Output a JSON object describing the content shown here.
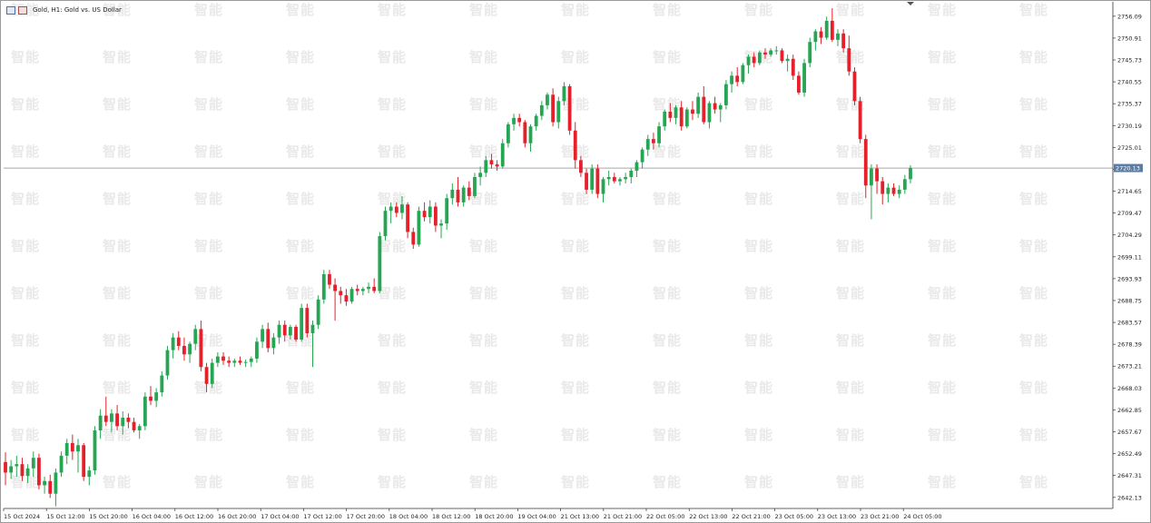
{
  "window": {
    "title": "Gold, H1:  Gold vs. US Dollar"
  },
  "colors": {
    "bull": "#26a653",
    "bear": "#e6202a",
    "price_line": "#a8a8a8",
    "axis": "#333333",
    "price_tag_bg": "#5b7da3"
  },
  "watermark": "智能",
  "chart_data": {
    "type": "candlestick",
    "symbol": "Gold",
    "timeframe": "H1",
    "title": "Gold vs. US Dollar",
    "ylim": [
      2639.5,
      2759.5
    ],
    "y_ticks": [
      "2756.09",
      "2750.91",
      "2745.73",
      "2740.55",
      "2735.37",
      "2730.19",
      "2725.01",
      "2719.83",
      "2714.65",
      "2709.47",
      "2704.29",
      "2699.11",
      "2693.93",
      "2688.75",
      "2683.57",
      "2678.39",
      "2673.21",
      "2668.03",
      "2662.85",
      "2657.67",
      "2652.49",
      "2647.31",
      "2642.13"
    ],
    "current_price": "2720.13",
    "x_labels": [
      "15 Oct 2024",
      "15 Oct 12:00",
      "15 Oct 20:00",
      "16 Oct 04:00",
      "16 Oct 12:00",
      "16 Oct 20:00",
      "17 Oct 04:00",
      "17 Oct 12:00",
      "17 Oct 20:00",
      "18 Oct 04:00",
      "18 Oct 12:00",
      "18 Oct 20:00",
      "19 Oct 04:00",
      "21 Oct 13:00",
      "21 Oct 21:00",
      "22 Oct 05:00",
      "22 Oct 13:00",
      "22 Oct 21:00",
      "23 Oct 05:00",
      "23 Oct 13:00",
      "23 Oct 21:00",
      "24 Oct 05:00"
    ],
    "candles_note": "approximate OHLC per H1 bar read from chart",
    "candles": [
      [
        2650.5,
        2652.8,
        2645.0,
        2648.0
      ],
      [
        2648.0,
        2651.0,
        2646.5,
        2649.5
      ],
      [
        2649.5,
        2652.0,
        2647.0,
        2650.0
      ],
      [
        2650.0,
        2651.5,
        2646.0,
        2647.2
      ],
      [
        2647.2,
        2650.0,
        2645.5,
        2649.0
      ],
      [
        2649.0,
        2653.0,
        2647.0,
        2651.5
      ],
      [
        2651.5,
        2652.5,
        2644.0,
        2645.0
      ],
      [
        2645.0,
        2647.0,
        2643.0,
        2646.0
      ],
      [
        2646.0,
        2647.5,
        2642.0,
        2643.0
      ],
      [
        2643.0,
        2649.0,
        2640.0,
        2648.0
      ],
      [
        2648.0,
        2653.0,
        2647.0,
        2652.0
      ],
      [
        2652.0,
        2656.0,
        2650.0,
        2655.0
      ],
      [
        2655.0,
        2657.0,
        2651.0,
        2653.0
      ],
      [
        2653.0,
        2656.0,
        2648.0,
        2654.5
      ],
      [
        2654.5,
        2655.0,
        2646.0,
        2647.0
      ],
      [
        2647.0,
        2649.5,
        2645.0,
        2648.5
      ],
      [
        2648.5,
        2659.0,
        2647.5,
        2658.0
      ],
      [
        2658.0,
        2663.0,
        2656.0,
        2661.5
      ],
      [
        2661.5,
        2666.0,
        2659.0,
        2660.0
      ],
      [
        2660.0,
        2663.0,
        2657.5,
        2662.0
      ],
      [
        2662.0,
        2664.0,
        2658.0,
        2659.0
      ],
      [
        2659.0,
        2662.5,
        2657.0,
        2661.0
      ],
      [
        2661.0,
        2662.0,
        2658.5,
        2660.0
      ],
      [
        2660.0,
        2661.0,
        2657.5,
        2658.0
      ],
      [
        2658.0,
        2659.5,
        2656.0,
        2659.0
      ],
      [
        2659.0,
        2667.0,
        2658.0,
        2666.0
      ],
      [
        2666.0,
        2668.5,
        2664.0,
        2665.0
      ],
      [
        2665.0,
        2668.0,
        2663.5,
        2667.0
      ],
      [
        2667.0,
        2672.0,
        2666.0,
        2671.0
      ],
      [
        2671.0,
        2678.0,
        2670.0,
        2677.0
      ],
      [
        2677.0,
        2681.0,
        2675.0,
        2680.0
      ],
      [
        2680.0,
        2681.5,
        2677.0,
        2678.0
      ],
      [
        2678.0,
        2680.0,
        2674.5,
        2676.0
      ],
      [
        2676.0,
        2679.0,
        2674.0,
        2678.5
      ],
      [
        2678.5,
        2683.0,
        2677.0,
        2682.0
      ],
      [
        2682.0,
        2684.0,
        2672.0,
        2673.0
      ],
      [
        2673.0,
        2674.0,
        2667.0,
        2669.0
      ],
      [
        2669.0,
        2675.0,
        2668.0,
        2674.0
      ],
      [
        2674.0,
        2676.5,
        2673.0,
        2675.5
      ],
      [
        2675.5,
        2676.5,
        2673.5,
        2674.5
      ],
      [
        2674.5,
        2675.5,
        2673.0,
        2674.0
      ],
      [
        2674.0,
        2675.0,
        2673.0,
        2674.5
      ],
      [
        2674.5,
        2675.5,
        2673.5,
        2674.0
      ],
      [
        2674.0,
        2674.8,
        2673.0,
        2674.2
      ],
      [
        2674.2,
        2675.5,
        2673.0,
        2675.0
      ],
      [
        2675.0,
        2680.0,
        2674.0,
        2679.0
      ],
      [
        2679.0,
        2683.0,
        2677.5,
        2682.0
      ],
      [
        2682.0,
        2683.5,
        2676.5,
        2677.5
      ],
      [
        2677.5,
        2681.0,
        2676.0,
        2680.0
      ],
      [
        2680.0,
        2684.0,
        2678.5,
        2683.0
      ],
      [
        2683.0,
        2684.0,
        2679.0,
        2680.5
      ],
      [
        2680.5,
        2683.0,
        2679.5,
        2682.5
      ],
      [
        2682.5,
        2683.0,
        2679.0,
        2679.5
      ],
      [
        2679.5,
        2688.0,
        2679.0,
        2687.0
      ],
      [
        2687.0,
        2688.0,
        2680.0,
        2681.0
      ],
      [
        2681.0,
        2684.0,
        2673.0,
        2683.0
      ],
      [
        2683.0,
        2690.0,
        2682.0,
        2689.0
      ],
      [
        2689.0,
        2696.0,
        2688.0,
        2695.0
      ],
      [
        2695.0,
        2696.0,
        2691.5,
        2692.5
      ],
      [
        2692.5,
        2694.0,
        2684.0,
        2691.0
      ],
      [
        2691.0,
        2692.0,
        2688.0,
        2690.0
      ],
      [
        2690.0,
        2691.5,
        2687.5,
        2688.5
      ],
      [
        2688.5,
        2692.0,
        2688.0,
        2691.5
      ],
      [
        2691.5,
        2692.5,
        2690.0,
        2691.0
      ],
      [
        2691.0,
        2692.0,
        2690.0,
        2691.5
      ],
      [
        2691.5,
        2693.0,
        2690.5,
        2692.0
      ],
      [
        2692.0,
        2694.0,
        2690.5,
        2691.0
      ],
      [
        2691.0,
        2705.0,
        2690.5,
        2704.0
      ],
      [
        2704.0,
        2711.0,
        2703.0,
        2710.0
      ],
      [
        2710.0,
        2712.0,
        2707.0,
        2711.0
      ],
      [
        2711.0,
        2712.0,
        2708.5,
        2709.5
      ],
      [
        2709.5,
        2713.5,
        2708.0,
        2711.5
      ],
      [
        2711.5,
        2712.0,
        2703.5,
        2705.0
      ],
      [
        2705.0,
        2706.0,
        2701.0,
        2702.0
      ],
      [
        2702.0,
        2711.0,
        2701.5,
        2710.0
      ],
      [
        2710.0,
        2712.0,
        2707.5,
        2708.5
      ],
      [
        2708.5,
        2712.5,
        2707.0,
        2711.0
      ],
      [
        2711.0,
        2712.0,
        2705.0,
        2706.5
      ],
      [
        2706.5,
        2708.0,
        2703.5,
        2707.0
      ],
      [
        2707.0,
        2714.0,
        2705.5,
        2713.0
      ],
      [
        2713.0,
        2716.5,
        2711.5,
        2715.0
      ],
      [
        2715.0,
        2718.0,
        2711.0,
        2712.0
      ],
      [
        2712.0,
        2716.0,
        2711.0,
        2715.5
      ],
      [
        2715.5,
        2717.0,
        2712.5,
        2713.5
      ],
      [
        2713.5,
        2719.0,
        2713.0,
        2718.0
      ],
      [
        2718.0,
        2720.5,
        2716.0,
        2719.0
      ],
      [
        2719.0,
        2723.0,
        2718.0,
        2722.0
      ],
      [
        2722.0,
        2723.5,
        2720.0,
        2721.0
      ],
      [
        2721.0,
        2722.0,
        2719.5,
        2720.5
      ],
      [
        2720.5,
        2727.0,
        2720.0,
        2726.0
      ],
      [
        2726.0,
        2731.0,
        2725.0,
        2730.5
      ],
      [
        2730.5,
        2733.0,
        2729.0,
        2732.0
      ],
      [
        2732.0,
        2733.0,
        2730.0,
        2731.0
      ],
      [
        2731.0,
        2731.5,
        2725.0,
        2726.0
      ],
      [
        2726.0,
        2730.5,
        2724.0,
        2730.0
      ],
      [
        2730.0,
        2733.0,
        2729.0,
        2732.5
      ],
      [
        2732.5,
        2736.0,
        2731.5,
        2735.0
      ],
      [
        2735.0,
        2738.0,
        2734.0,
        2737.5
      ],
      [
        2737.5,
        2739.0,
        2730.0,
        2731.0
      ],
      [
        2731.0,
        2737.0,
        2729.5,
        2736.0
      ],
      [
        2736.0,
        2740.5,
        2735.0,
        2739.5
      ],
      [
        2739.5,
        2740.0,
        2728.0,
        2729.0
      ],
      [
        2729.0,
        2731.0,
        2720.0,
        2722.0
      ],
      [
        2722.0,
        2723.0,
        2718.0,
        2719.0
      ],
      [
        2719.0,
        2720.0,
        2714.0,
        2715.0
      ],
      [
        2715.0,
        2721.0,
        2714.0,
        2720.0
      ],
      [
        2720.0,
        2721.0,
        2713.0,
        2714.0
      ],
      [
        2714.0,
        2718.0,
        2712.0,
        2717.5
      ],
      [
        2717.5,
        2719.5,
        2716.0,
        2718.0
      ],
      [
        2718.0,
        2719.0,
        2716.5,
        2717.0
      ],
      [
        2717.0,
        2718.0,
        2716.0,
        2717.5
      ],
      [
        2717.5,
        2719.0,
        2716.5,
        2718.0
      ],
      [
        2718.0,
        2720.0,
        2716.5,
        2719.5
      ],
      [
        2719.5,
        2722.0,
        2718.0,
        2721.5
      ],
      [
        2721.5,
        2725.0,
        2720.0,
        2724.5
      ],
      [
        2724.5,
        2728.0,
        2723.0,
        2727.0
      ],
      [
        2727.0,
        2728.5,
        2724.5,
        2726.0
      ],
      [
        2726.0,
        2731.0,
        2725.0,
        2730.0
      ],
      [
        2730.0,
        2734.0,
        2729.0,
        2733.5
      ],
      [
        2733.5,
        2735.5,
        2731.0,
        2732.0
      ],
      [
        2732.0,
        2735.0,
        2730.5,
        2734.5
      ],
      [
        2734.5,
        2736.0,
        2729.0,
        2730.0
      ],
      [
        2730.0,
        2734.5,
        2729.5,
        2734.0
      ],
      [
        2734.0,
        2736.0,
        2731.5,
        2733.0
      ],
      [
        2733.0,
        2738.0,
        2732.0,
        2737.0
      ],
      [
        2737.0,
        2739.5,
        2730.5,
        2731.0
      ],
      [
        2731.0,
        2736.0,
        2729.5,
        2735.5
      ],
      [
        2735.5,
        2737.0,
        2733.0,
        2734.0
      ],
      [
        2734.0,
        2735.5,
        2731.0,
        2735.0
      ],
      [
        2735.0,
        2741.0,
        2734.0,
        2740.0
      ],
      [
        2740.0,
        2743.0,
        2738.0,
        2742.0
      ],
      [
        2742.0,
        2744.0,
        2739.5,
        2740.5
      ],
      [
        2740.5,
        2745.0,
        2740.0,
        2744.5
      ],
      [
        2744.5,
        2747.0,
        2742.5,
        2746.5
      ],
      [
        2746.5,
        2747.5,
        2744.0,
        2745.0
      ],
      [
        2745.0,
        2748.0,
        2744.5,
        2747.5
      ],
      [
        2747.5,
        2748.5,
        2746.0,
        2747.0
      ],
      [
        2747.0,
        2748.5,
        2746.5,
        2748.0
      ],
      [
        2748.0,
        2749.0,
        2747.0,
        2748.0
      ],
      [
        2748.0,
        2748.5,
        2745.0,
        2745.5
      ],
      [
        2745.5,
        2747.0,
        2743.0,
        2746.0
      ],
      [
        2746.0,
        2747.0,
        2741.0,
        2742.0
      ],
      [
        2742.0,
        2743.0,
        2737.5,
        2738.0
      ],
      [
        2738.0,
        2746.0,
        2737.0,
        2745.0
      ],
      [
        2745.0,
        2751.0,
        2744.0,
        2750.0
      ],
      [
        2750.0,
        2753.0,
        2748.0,
        2752.5
      ],
      [
        2752.5,
        2753.5,
        2749.5,
        2751.0
      ],
      [
        2751.0,
        2756.0,
        2750.5,
        2755.0
      ],
      [
        2755.0,
        2758.0,
        2750.0,
        2750.5
      ],
      [
        2750.5,
        2753.0,
        2749.0,
        2752.0
      ],
      [
        2752.0,
        2753.0,
        2747.5,
        2748.5
      ],
      [
        2748.5,
        2751.5,
        2742.0,
        2743.0
      ],
      [
        2743.0,
        2744.0,
        2735.0,
        2736.0
      ],
      [
        2736.0,
        2737.0,
        2726.0,
        2727.0
      ],
      [
        2727.0,
        2728.0,
        2713.0,
        2716.0
      ],
      [
        2716.0,
        2721.0,
        2708.0,
        2720.0
      ],
      [
        2720.0,
        2721.0,
        2714.0,
        2717.0
      ],
      [
        2717.0,
        2718.0,
        2711.5,
        2714.0
      ],
      [
        2714.0,
        2716.5,
        2712.0,
        2715.5
      ],
      [
        2715.5,
        2716.5,
        2713.5,
        2714.0
      ],
      [
        2714.0,
        2716.0,
        2713.0,
        2715.0
      ],
      [
        2715.0,
        2718.5,
        2714.0,
        2717.5
      ],
      [
        2717.5,
        2720.8,
        2716.5,
        2720.13
      ]
    ]
  }
}
